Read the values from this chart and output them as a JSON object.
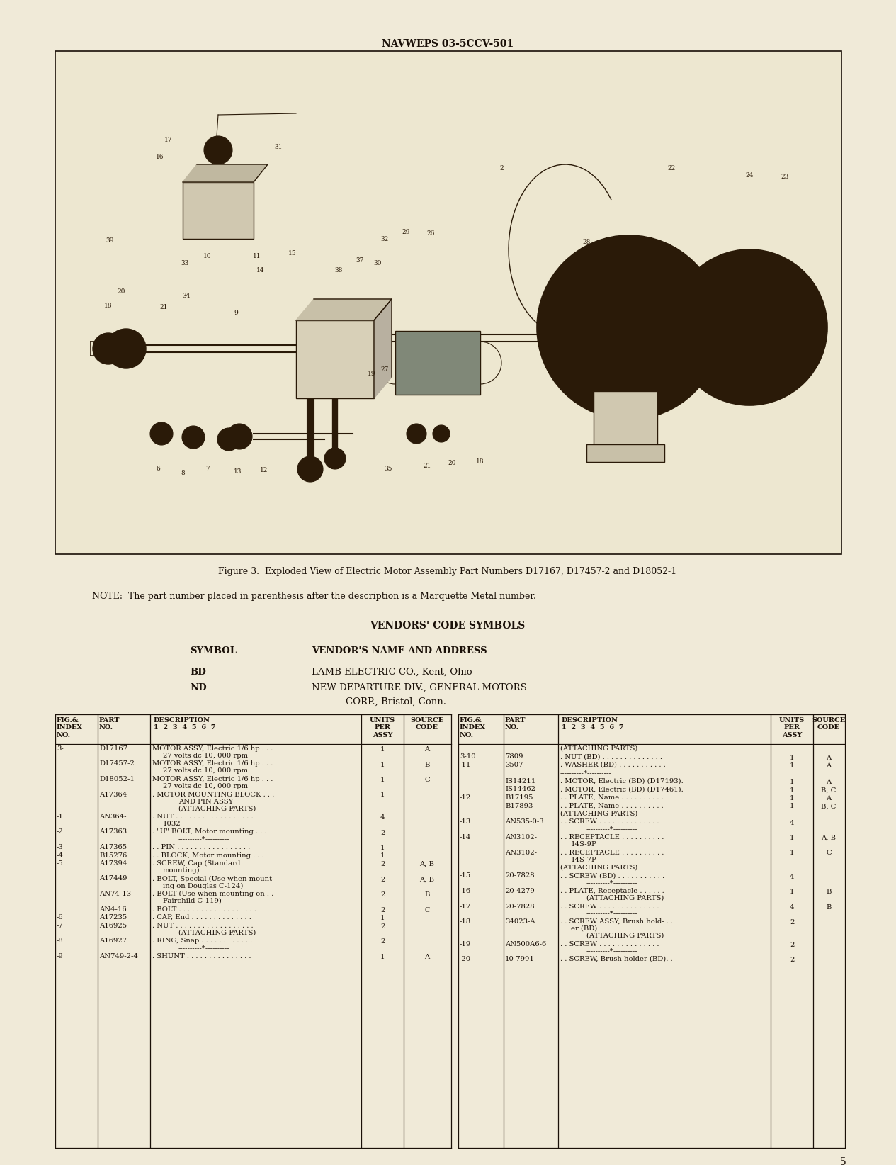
{
  "page_bg": "#f0ead8",
  "header_text": "NAVWEPS 03-5CCV-501",
  "figure_caption": "Figure 3.  Exploded View of Electric Motor Assembly Part Numbers D17167, D17457-2 and D18052-1",
  "note_text": "NOTE:  The part number placed in parenthesis after the description is a Marquette Metal number.",
  "vendors_title": "VENDORS' CODE SYMBOLS",
  "symbol_header": "SYMBOL",
  "vendor_name_header": "VENDOR'S NAME AND ADDRESS",
  "bd_name": "LAMB ELECTRIC CO., Kent, Ohio",
  "nd_name": "NEW DEPARTURE DIV., GENERAL MOTORS",
  "nd_name2": "CORP., Bristol, Conn.",
  "table_left_rows": [
    [
      "3-",
      "D17167",
      "MOTOR ASSY, Electric 1/6 hp . . .",
      "1",
      "A",
      "27 volts dc 10, 000 rpm"
    ],
    [
      "",
      "D17457-2",
      "MOTOR ASSY, Electric 1/6 hp . . .",
      "1",
      "B",
      "27 volts dc 10, 000 rpm"
    ],
    [
      "",
      "D18052-1",
      "MOTOR ASSY, Electric 1/6 hp . . .",
      "1",
      "C",
      "27 volts dc 10, 000 rpm"
    ],
    [
      "",
      "A17364",
      ". MOTOR MOUNTING BLOCK . . .",
      "1",
      "",
      "AND PIN ASSY",
      "(ATTACHING PARTS)"
    ],
    [
      "-1",
      "AN364-",
      ". NUT . . . . . . . . . . . . . . . . . . . .",
      "4",
      "",
      "1032"
    ],
    [
      "-2",
      "A17363",
      ". \"U\" BOLT, Motor mounting . . .",
      "2",
      "",
      "----------*----------"
    ],
    [
      "-3",
      "A17365",
      ". . PIN . . . . . . . . . . . . . . . . . . .",
      "1",
      ""
    ],
    [
      "-4",
      "B15276",
      ". . BLOCK, Motor mounting . . .",
      "1",
      ""
    ],
    [
      "-5",
      "A17394",
      ". SCREW, Cap (Standard",
      "2",
      "A, B",
      "mounting)"
    ],
    [
      "",
      "A17449",
      ". BOLT, Special (Use when mount-",
      "2",
      "A, B",
      "ing on Douglas C-124)"
    ],
    [
      "",
      "AN74-13",
      ". BOLT (Use when mounting on . .",
      "2",
      "B",
      "Fairchild C-119)"
    ],
    [
      "",
      "AN4-16",
      ". BOLT . . . . . . . . . . . . . . . . . . .",
      "2",
      "C"
    ],
    [
      "-6",
      "A17235",
      ". CAP, End . . . . . . . . . . . . . . .",
      "1",
      ""
    ],
    [
      "-7",
      "A16925",
      ". NUT . . . . . . . . . . . . . . . . . . . .",
      "2",
      "",
      "(ATTACHING PARTS)"
    ],
    [
      "-8",
      "A16927",
      ". RING, Snap . . . . . . . . . . . . .",
      "2",
      "",
      "----------*----------"
    ],
    [
      "-9",
      "AN749-2-4",
      ". SHUNT . . . . . . . . . . . . . . . . .",
      "1",
      "A"
    ]
  ],
  "table_right_rows": [
    [
      "",
      "",
      "(ATTACHING PARTS)",
      "",
      ""
    ],
    [
      "3-10",
      "7809",
      ". NUT (BD) . . . . . . . . . . . . . . .",
      "1",
      "A"
    ],
    [
      "-11",
      "3507",
      ". WASHER (BD) . . . . . . . . . . .",
      "1",
      "A"
    ],
    [
      "",
      "",
      "----------*----------",
      "",
      ""
    ],
    [
      "",
      "IS14211",
      ". MOTOR, Electric (BD) (D17193).",
      "1",
      "A"
    ],
    [
      "",
      "IS14462",
      ". MOTOR, Electric (BD) (D17461).",
      "1",
      "B, C"
    ],
    [
      "-12",
      "B17195",
      ". . PLATE, Name . . . . . . . . . . .",
      "1",
      "A"
    ],
    [
      "",
      "B17893",
      ". . PLATE, Name . . . . . . . . . . .",
      "1",
      "B, C"
    ],
    [
      "",
      "",
      "(ATTACHING PARTS)",
      "",
      ""
    ],
    [
      "-13",
      "AN535-0-3",
      ". . SCREW . . . . . . . . . . . . . . .",
      "4",
      "",
      "----------*----------"
    ],
    [
      "-14",
      "AN3102-",
      ". . RECEPTACLE . . . . . . . . . . .",
      "1",
      "A, B",
      "14S-9P"
    ],
    [
      "",
      "AN3102-",
      ". . RECEPTACLE . . . . . . . . . . .",
      "1",
      "C",
      "14S-7P"
    ],
    [
      "",
      "",
      "(ATTACHING PARTS)",
      "",
      ""
    ],
    [
      "-15",
      "20-7828",
      ". . SCREW (BD) . . . . . . . . . . .",
      "4",
      "",
      "----------*----------"
    ],
    [
      "-16",
      "20-4279",
      ". . PLATE, Receptacle . . . . . .",
      "1",
      "B",
      "(ATTACHING PARTS)"
    ],
    [
      "-17",
      "20-7828",
      ". . SCREW . . . . . . . . . . . . . . .",
      "4",
      "B",
      "----------*----------"
    ],
    [
      "-18",
      "34023-A",
      ". . SCREW ASSY, Brush hold- . .",
      "2",
      "",
      "er (BD)",
      "(ATTACHING PARTS)"
    ],
    [
      "-19",
      "AN500A6-6",
      ". . SCREW . . . . . . . . . . . . . . .",
      "2",
      "",
      "----------*----------"
    ],
    [
      "-20",
      "10-7991",
      ". . SCREW, Brush holder (BD). .",
      "2",
      ""
    ]
  ],
  "page_number": "5",
  "text_color": "#1a1008",
  "line_color": "#1a1008",
  "box_bg": "#ede7d0"
}
